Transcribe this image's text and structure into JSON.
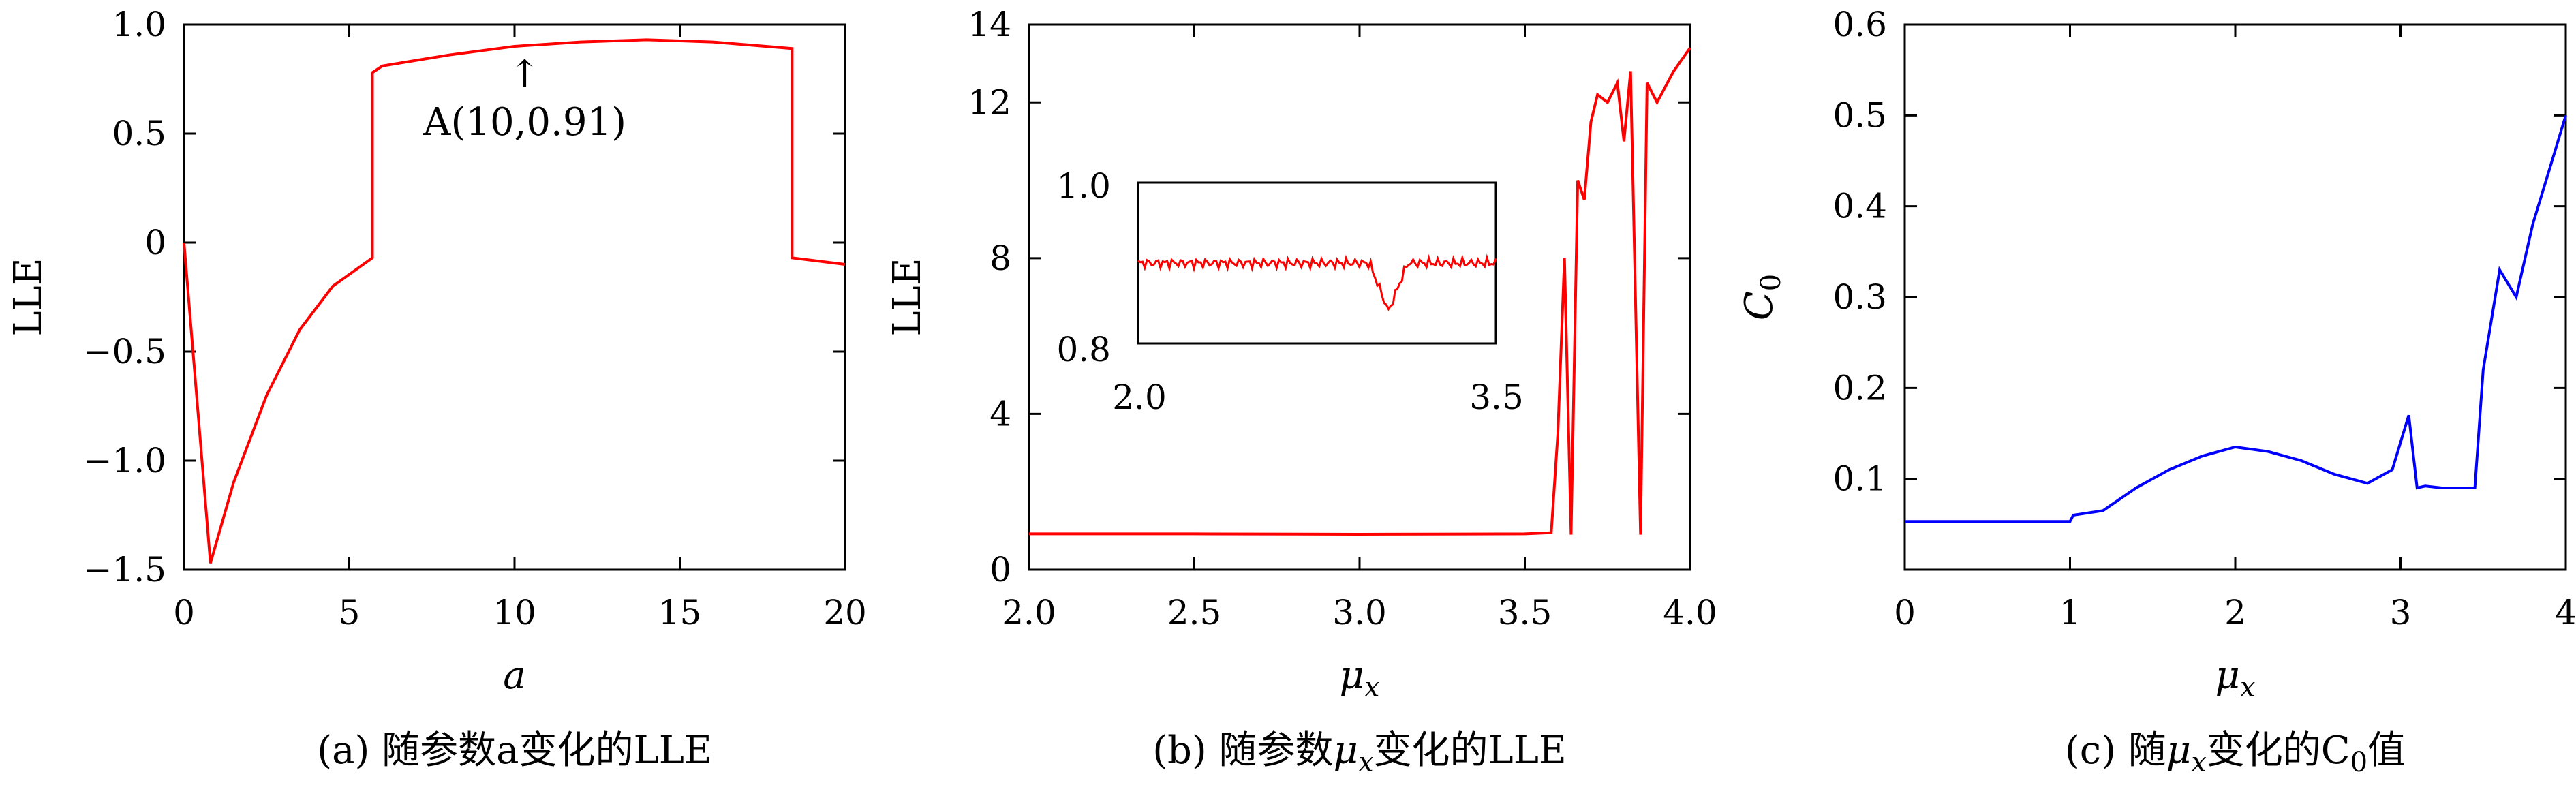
{
  "colors": {
    "series_a": "#ff0000",
    "series_b": "#ff0000",
    "series_c": "#0000ff"
  },
  "panels": [
    {
      "caption": "(a) 随参数a变化的LLE",
      "xlabel": "a",
      "ylabel": "LLE",
      "annotation": "A(10,0.91)"
    },
    {
      "caption": "(b) 随参数μx变化的LLE",
      "xlabel": "μx",
      "ylabel": "LLE",
      "inset": {
        "y_ticks": [
          "1.0",
          "0.8"
        ],
        "x_ticks": [
          "2.0",
          "3.5"
        ]
      }
    },
    {
      "caption": "(c) 随μx变化的C0值",
      "xlabel": "μx",
      "ylabel": "C0"
    }
  ],
  "chart_data": [
    {
      "type": "line",
      "title": "",
      "xlabel": "a",
      "ylabel": "LLE",
      "xlim": [
        0,
        20
      ],
      "ylim": [
        -1.5,
        1.0
      ],
      "x_ticks": [
        "0",
        "5",
        "10",
        "15",
        "20"
      ],
      "y_ticks": [
        "1.0",
        "0.5",
        "0",
        "−0.5",
        "−1.0",
        "−1.5"
      ],
      "grid": false,
      "annotations": [
        {
          "text": "A(10,0.91)",
          "x": 10,
          "y": 0.91
        }
      ],
      "series": [
        {
          "x": [
            0,
            0.8,
            1.5,
            2.5,
            3.5,
            4.5,
            5.7,
            5.7,
            6,
            8,
            10,
            12,
            14,
            16,
            18.4,
            18.4,
            20
          ],
          "y": [
            0,
            -1.47,
            -1.1,
            -0.7,
            -0.4,
            -0.2,
            -0.07,
            0.78,
            0.81,
            0.86,
            0.9,
            0.92,
            0.93,
            0.92,
            0.89,
            -0.07,
            -0.1
          ]
        }
      ]
    },
    {
      "type": "line",
      "title": "",
      "xlabel": "μx",
      "ylabel": "LLE",
      "xlim": [
        2.0,
        4.0
      ],
      "ylim": [
        0,
        14
      ],
      "x_ticks": [
        "2.0",
        "2.5",
        "3.0",
        "3.5",
        "4.0"
      ],
      "y_ticks": [
        "14",
        "12",
        "8",
        "4",
        "0"
      ],
      "grid": false,
      "inset": {
        "xlim": [
          2.0,
          3.5
        ],
        "ylim": [
          0.8,
          1.0
        ],
        "y_ticks": [
          "1.0",
          "0.8"
        ],
        "x_ticks": [
          "2.0",
          "3.5"
        ],
        "level": 0.9,
        "dip_x": 3.05,
        "dip_y": 0.84
      },
      "series": [
        {
          "x": [
            2.0,
            2.5,
            3.0,
            3.5,
            3.58,
            3.6,
            3.62,
            3.64,
            3.66,
            3.68,
            3.7,
            3.72,
            3.75,
            3.78,
            3.8,
            3.82,
            3.85,
            3.87,
            3.9,
            3.95,
            4.0
          ],
          "y": [
            0.92,
            0.92,
            0.91,
            0.92,
            0.95,
            3.5,
            8.0,
            0.9,
            10.0,
            9.5,
            11.5,
            12.2,
            12.0,
            12.5,
            11.0,
            12.8,
            0.9,
            12.5,
            12.0,
            12.8,
            13.4
          ]
        }
      ]
    },
    {
      "type": "line",
      "title": "",
      "xlabel": "μx",
      "ylabel": "C0",
      "xlim": [
        0,
        4
      ],
      "ylim": [
        0,
        0.6
      ],
      "x_ticks": [
        "0",
        "1",
        "2",
        "3",
        "4"
      ],
      "y_ticks": [
        "0.6",
        "0.5",
        "0.4",
        "0.3",
        "0.2",
        "0.1"
      ],
      "grid": false,
      "series": [
        {
          "x": [
            0,
            1.0,
            1.02,
            1.2,
            1.4,
            1.6,
            1.8,
            2.0,
            2.2,
            2.4,
            2.6,
            2.8,
            2.95,
            3.05,
            3.1,
            3.15,
            3.25,
            3.45,
            3.5,
            3.6,
            3.7,
            3.8,
            3.9,
            4.0
          ],
          "y": [
            0.053,
            0.053,
            0.06,
            0.065,
            0.09,
            0.11,
            0.125,
            0.135,
            0.13,
            0.12,
            0.105,
            0.095,
            0.11,
            0.17,
            0.09,
            0.092,
            0.09,
            0.09,
            0.22,
            0.33,
            0.3,
            0.38,
            0.44,
            0.5
          ]
        }
      ]
    }
  ]
}
